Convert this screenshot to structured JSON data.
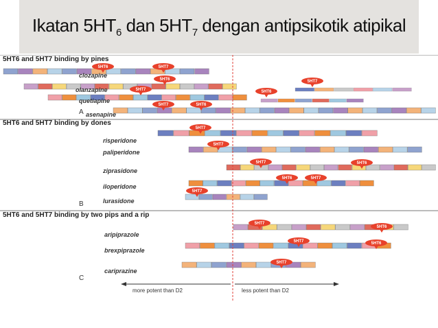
{
  "slide": {
    "title_part1": "Ikatan 5HT",
    "title_sub1": "6",
    "title_part2": " dan 5HT",
    "title_sub2": "7",
    "title_part3": " dengan antipsikotik atipikal"
  },
  "figure": {
    "sections": [
      {
        "heading": "5HT6 and 5HT7 binding by pines",
        "panel_label": "A",
        "drugs": [
          {
            "name": "clozapine",
            "tags": [
              "5HT6",
              "5HT7"
            ]
          },
          {
            "name": "olanzapine",
            "tags": [
              "5HT6",
              "5HT7"
            ]
          },
          {
            "name": "quetiapine",
            "tags": [
              "5HT7",
              "5HT6"
            ]
          },
          {
            "name": "asenapine",
            "tags": [
              "5HT7",
              "5HT6"
            ]
          }
        ]
      },
      {
        "heading": "5HT6 and 5HT7 binding by dones",
        "panel_label": "B",
        "drugs": [
          {
            "name": "risperidone",
            "tags": [
              "5HT7"
            ]
          },
          {
            "name": "paliperidone",
            "tags": [
              "5HT7"
            ]
          },
          {
            "name": "ziprasidone",
            "tags": [
              "5HT7",
              "5HT6"
            ]
          },
          {
            "name": "iloperidone",
            "tags": [
              "5HT6",
              "5HT7"
            ]
          },
          {
            "name": "lurasidone",
            "tags": [
              "5HT7"
            ]
          }
        ]
      },
      {
        "heading": "5HT6 and 5HT7 binding by two pips and a rip",
        "panel_label": "C",
        "drugs": [
          {
            "name": "aripiprazole",
            "tags": [
              "5HT7",
              "5HT6"
            ]
          },
          {
            "name": "brexpiprazole",
            "tags": [
              "5HT7",
              "5HT6"
            ]
          },
          {
            "name": "cariprazine",
            "tags": [
              "5HT7"
            ]
          }
        ]
      }
    ],
    "axis_left": "more potent than D2",
    "axis_right": "less potent than D2",
    "colors": {
      "tag": "#e8412b",
      "divider": "#e0413a",
      "bar_palette": [
        "#8fa3cf",
        "#6c7fc0",
        "#c7a0c9",
        "#a884bd",
        "#f0a0a8",
        "#e06a5c",
        "#f3b37a",
        "#ef8f3d",
        "#f6d77a",
        "#b7d3e8",
        "#9fc8e0",
        "#c9c9c9"
      ]
    }
  }
}
